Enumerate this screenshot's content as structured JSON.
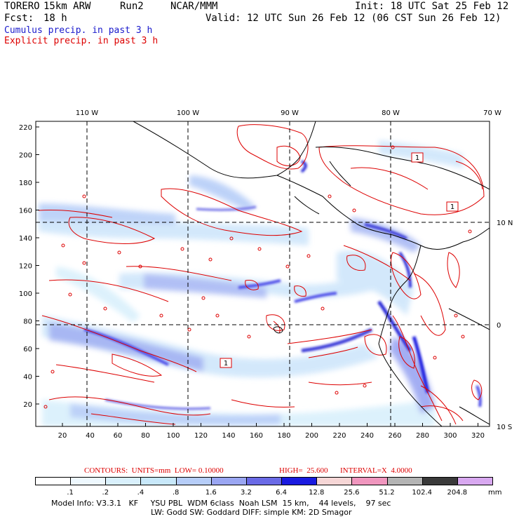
{
  "header": {
    "model": "TORERO",
    "resolution": "15km ARW",
    "run": "Run2",
    "org": "NCAR/MMM",
    "init": "Init: 18 UTC Sat 25 Feb 12",
    "fcst_label": "Fcst:",
    "fcst_value": "18 h",
    "valid": "Valid: 12 UTC Sun 26 Feb 12 (06 CST Sun 26 Feb 12)"
  },
  "legend": {
    "cumulus": "Cumulus precip. in past 3 h",
    "explicit": "Explicit precip. in past 3 h"
  },
  "map": {
    "lon_labels": [
      "110 W",
      "100 W",
      "90 W",
      "80 W",
      "70 W"
    ],
    "lat_labels": [
      "10 N",
      "0",
      "10 S"
    ],
    "y_ticks": [
      "220",
      "200",
      "180",
      "160",
      "140",
      "120",
      "100",
      "80",
      "60",
      "40",
      "20"
    ],
    "x_ticks": [
      "20",
      "40",
      "60",
      "80",
      "100",
      "120",
      "140",
      "160",
      "180",
      "200",
      "220",
      "240",
      "260",
      "280",
      "300",
      "320"
    ],
    "contour_box_label": "1",
    "colors": {
      "cumulus": "#4a4ae8",
      "explicit": "#dd0000",
      "coast": "#000000"
    }
  },
  "contours": {
    "units": "CONTOURS:  UNITS=mm  LOW= 0.10000",
    "high": "HIGH=  25.600",
    "interval": "INTERVAL=X  4.0000"
  },
  "colorbar": {
    "unit": "mm",
    "labels": [
      ".1",
      ".2",
      ".4",
      ".8",
      "1.6",
      "3.2",
      "6.4",
      "12.8",
      "25.6",
      "51.2",
      "102.4",
      "204.8"
    ],
    "colors": [
      "#ffffff",
      "#eef8fe",
      "#d9f0fc",
      "#c8e8fa",
      "#b6cdf8",
      "#9aa6f2",
      "#6a6ae6",
      "#1a1ae0",
      "#f6d6d6",
      "#f096be",
      "#b4b4b4",
      "#3a3a3a",
      "#d8a8f0"
    ]
  },
  "footer": {
    "line1": "Model Info: V3.3.1   KF     YSU PBL  WDM 6class  Noah LSM  15 km,    44 levels,    97 sec",
    "line2": "LW: Godd SW: Goddard DIFF: simple KM: 2D Smagor"
  }
}
